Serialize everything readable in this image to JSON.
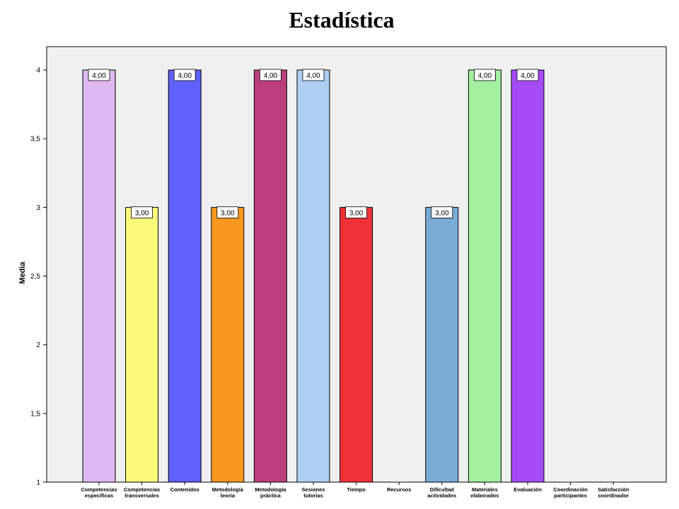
{
  "chart_data": {
    "type": "bar",
    "title": "Estadística",
    "xlabel": "",
    "ylabel": "Media",
    "ylim": [
      1,
      4.17
    ],
    "yticks": [
      "1",
      "1,5",
      "2",
      "2,5",
      "3",
      "3,5",
      "4"
    ],
    "ytick_values": [
      1,
      1.5,
      2,
      2.5,
      3,
      3.5,
      4
    ],
    "grid": false,
    "categories": [
      [
        "Competencias",
        "específicas"
      ],
      [
        "Competencias",
        "transversales"
      ],
      [
        "Contenidos"
      ],
      [
        "Metodología",
        "teoría"
      ],
      [
        "Metodología",
        "práctica"
      ],
      [
        "Sesiones",
        "tutorías"
      ],
      [
        "Tiempo"
      ],
      [
        "Recursos"
      ],
      [
        "Dificultad",
        "actividades"
      ],
      [
        "Materiales",
        "elaborados"
      ],
      [
        "Evaluación"
      ],
      [
        "Coordinación",
        "participantes"
      ],
      [
        "Satisfacción",
        "coordinador"
      ]
    ],
    "values": [
      4,
      3,
      4,
      3,
      4,
      4,
      3,
      null,
      3,
      4,
      4,
      null,
      null
    ],
    "data_labels": [
      "4,00",
      "3,00",
      "4,00",
      "3,00",
      "4,00",
      "4,00",
      "3,00",
      "",
      "3,00",
      "4,00",
      "4,00",
      "",
      ""
    ],
    "colors": [
      "#dfb9f1",
      "#fbf97a",
      "#5f60fd",
      "#f8971f",
      "#bc3e7e",
      "#aecff1",
      "#f03238",
      "#d0d0d0",
      "#7aaad6",
      "#a3efa0",
      "#a54cf7",
      "#d0d0d0",
      "#d0d0d0"
    ],
    "plot_background": "#f0f0f0"
  }
}
